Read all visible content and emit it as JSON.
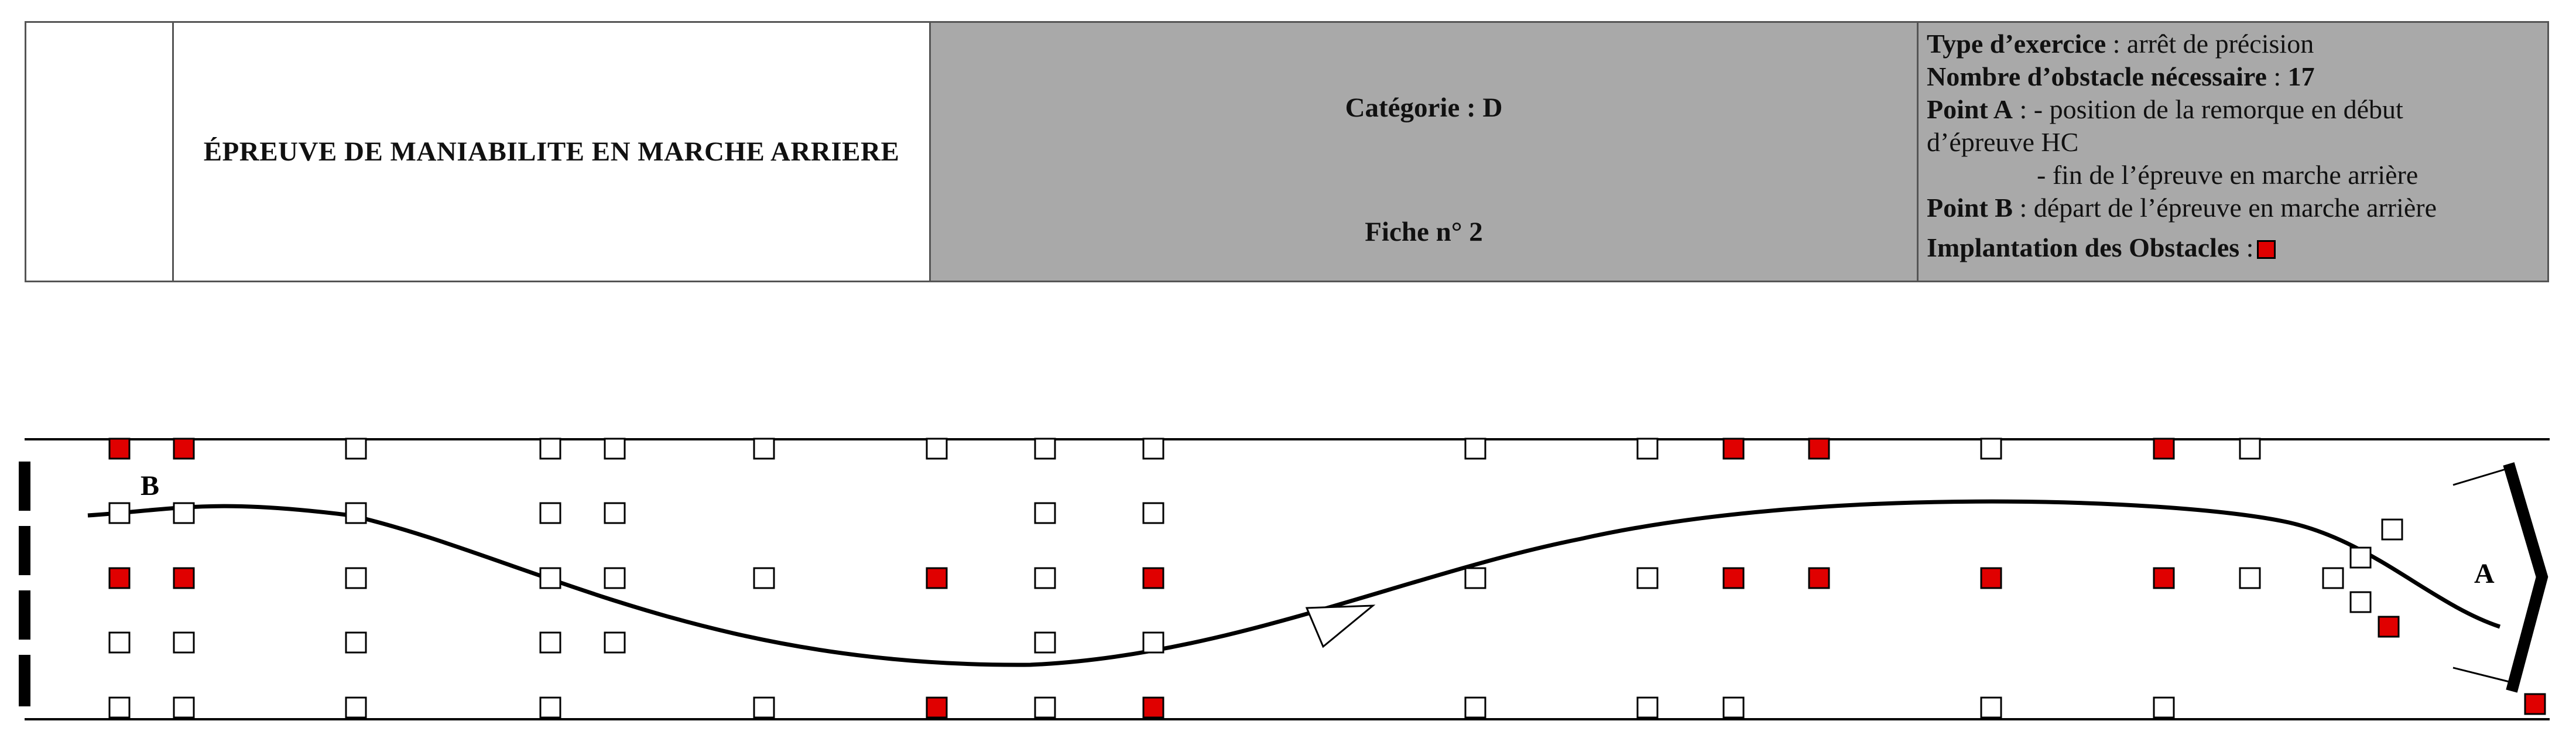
{
  "header": {
    "title": "ÉPREUVE DE MANIABILITE EN MARCHE ARRIERE",
    "category": "Catégorie : D",
    "fiche": "Fiche n° 2",
    "info": {
      "type_label": "Type d’exercice",
      "type_value": " : arrêt de précision",
      "count_label": "Nombre d’obstacle nécessaire",
      "count_sep": " : ",
      "count_value": "17",
      "point_a_label": "Point A",
      "point_a_line1": " : - position de la remorque en début",
      "point_a_line2": "d’épreuve HC",
      "point_a_line3": "- fin de l’épreuve en marche arrière",
      "point_b_label": "Point B",
      "point_b_value": " : départ de l’épreuve en marche arrière",
      "legend_label": "Implantation des Obstacles",
      "legend_sep": " :"
    }
  },
  "course": {
    "label_a": "A",
    "label_b": "B",
    "colors": {
      "obstacle_fill": "#e00000",
      "line": "#000000"
    }
  }
}
